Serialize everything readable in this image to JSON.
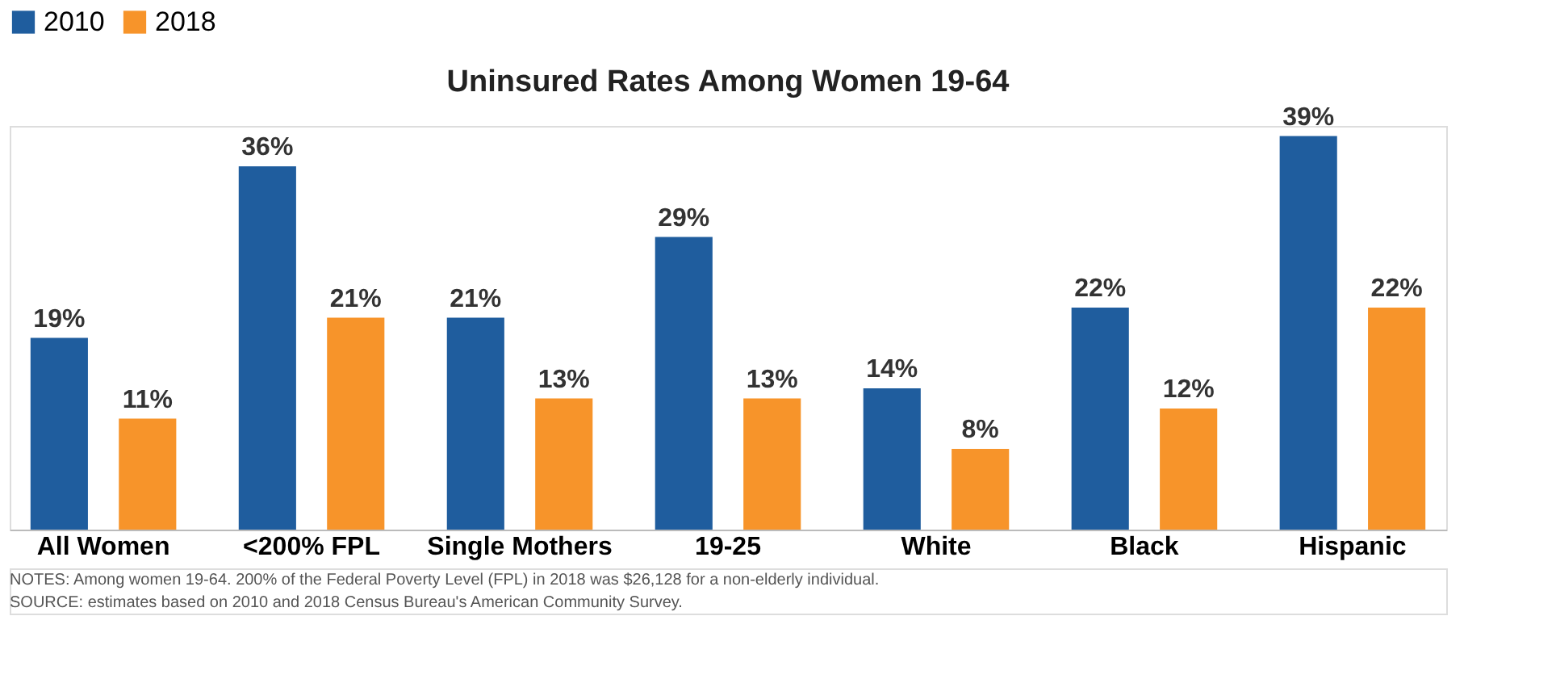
{
  "chart_data": {
    "type": "bar",
    "title": "Uninsured Rates Among Women 19-64",
    "categories": [
      "All Women",
      "<200% FPL",
      "Single Mothers",
      "19-25",
      "White",
      "Black",
      "Hispanic"
    ],
    "series": [
      {
        "name": "2010",
        "color": "#1f5d9e",
        "values": [
          19,
          36,
          21,
          29,
          14,
          22,
          39
        ],
        "value_labels": [
          "19%",
          "36%",
          "21%",
          "29%",
          "14%",
          "22%",
          "39%"
        ]
      },
      {
        "name": "2018",
        "color": "#f7942a",
        "values": [
          11,
          21,
          13,
          13,
          8,
          12,
          22
        ],
        "value_labels": [
          "11%",
          "21%",
          "13%",
          "13%",
          "8%",
          "12%",
          "22%"
        ]
      }
    ],
    "legend": "top",
    "grid": false,
    "annotations": [
      "NOTES: Among women 19-64. 200% of the Federal Poverty Level (FPL) in 2018 was $26,128 for a non-elderly individual.",
      "SOURCE: estimates based on 2010 and 2018 Census Bureau's American Community Survey."
    ]
  }
}
